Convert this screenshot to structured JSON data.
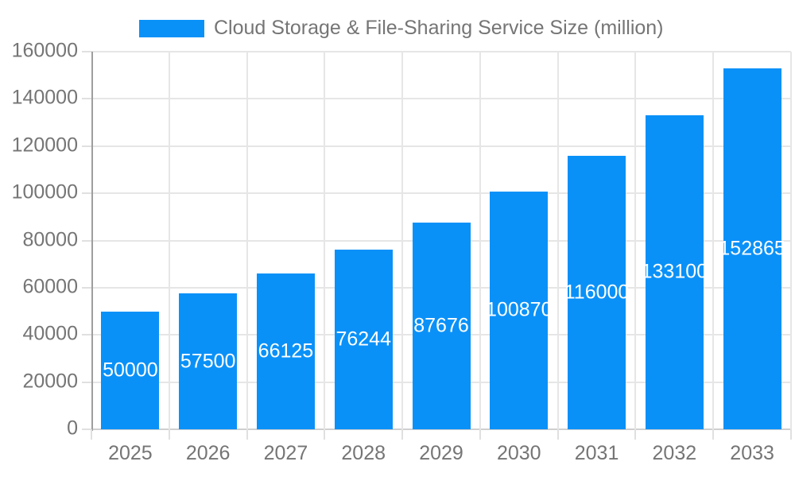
{
  "chart_data": {
    "type": "bar",
    "title": "Cloud Storage & File-Sharing Service Size (million)",
    "categories": [
      "2025",
      "2026",
      "2027",
      "2028",
      "2029",
      "2030",
      "2031",
      "2032",
      "2033"
    ],
    "values": [
      50000,
      57500,
      66125,
      76244,
      87676,
      100870,
      116000,
      133100,
      152865
    ],
    "value_labels": [
      "50000",
      "57500",
      "66125",
      "76244",
      "87676",
      "100870",
      "116000",
      "133100",
      "152865"
    ],
    "y_ticks": [
      0,
      20000,
      40000,
      60000,
      80000,
      100000,
      120000,
      140000,
      160000
    ],
    "ylim": [
      0,
      160000
    ],
    "xlabel": "",
    "ylabel": "",
    "grid": true,
    "legend_position": "top",
    "colors": {
      "bar": "#0a91f8",
      "value_label": "#ffffff",
      "axis_text": "#757575",
      "gridline": "#e6e6e6",
      "baseline": "#cfcfcf",
      "axis_line": "#9e9e9e"
    }
  }
}
